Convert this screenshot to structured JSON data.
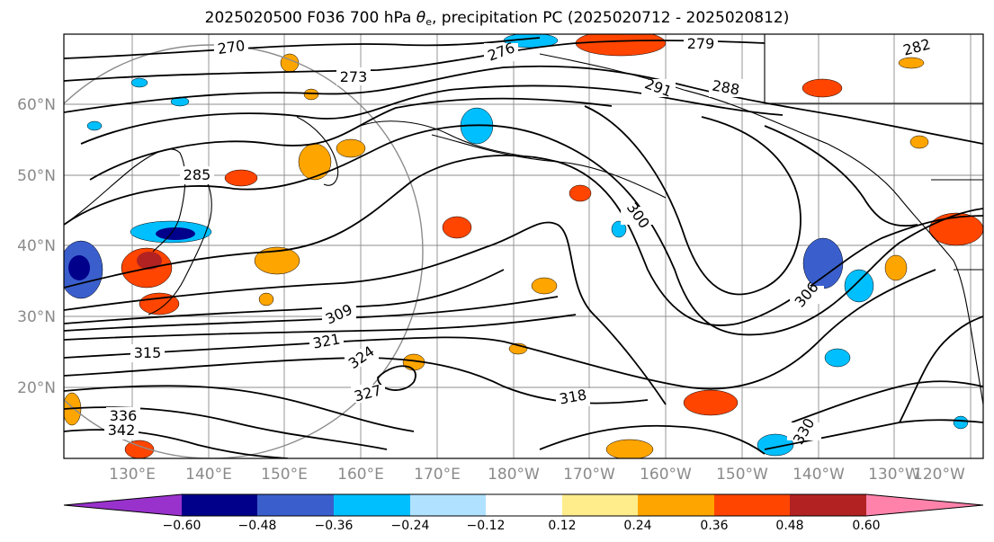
{
  "title": {
    "prefix": "2025020500 F036 700 hPa ",
    "theta": "θ",
    "theta_sub": "e",
    "suffix": ", precipitation PC (2025020712 - 2025020812)"
  },
  "map": {
    "lat_labels": [
      "60°N",
      "50°N",
      "40°N",
      "30°N",
      "20°N"
    ],
    "lon_labels": [
      "130°E",
      "140°E",
      "150°E",
      "160°E",
      "170°E",
      "180°W",
      "170°W",
      "160°W",
      "150°W",
      "140°W",
      "130°W",
      "120°W"
    ],
    "contour_labels": [
      "270",
      "273",
      "276",
      "279",
      "282",
      "285",
      "288",
      "291",
      "300",
      "306",
      "309",
      "315",
      "318",
      "321",
      "324",
      "327",
      "330",
      "336",
      "342"
    ],
    "colors": {
      "coast": "#000000",
      "grid": "#8c8c8c",
      "contour": "#000000"
    }
  },
  "colorbar": {
    "ticks": [
      "−0.60",
      "−0.48",
      "−0.36",
      "−0.24",
      "−0.12",
      "0.12",
      "0.24",
      "0.36",
      "0.48",
      "0.60"
    ],
    "colors": [
      "#9932cc",
      "#00008b",
      "#3a5fcd",
      "#00bfff",
      "#b0e2ff",
      "#ffffff",
      "#ffec8b",
      "#ffa500",
      "#ff4500",
      "#b22222",
      "#ff82ab"
    ]
  }
}
